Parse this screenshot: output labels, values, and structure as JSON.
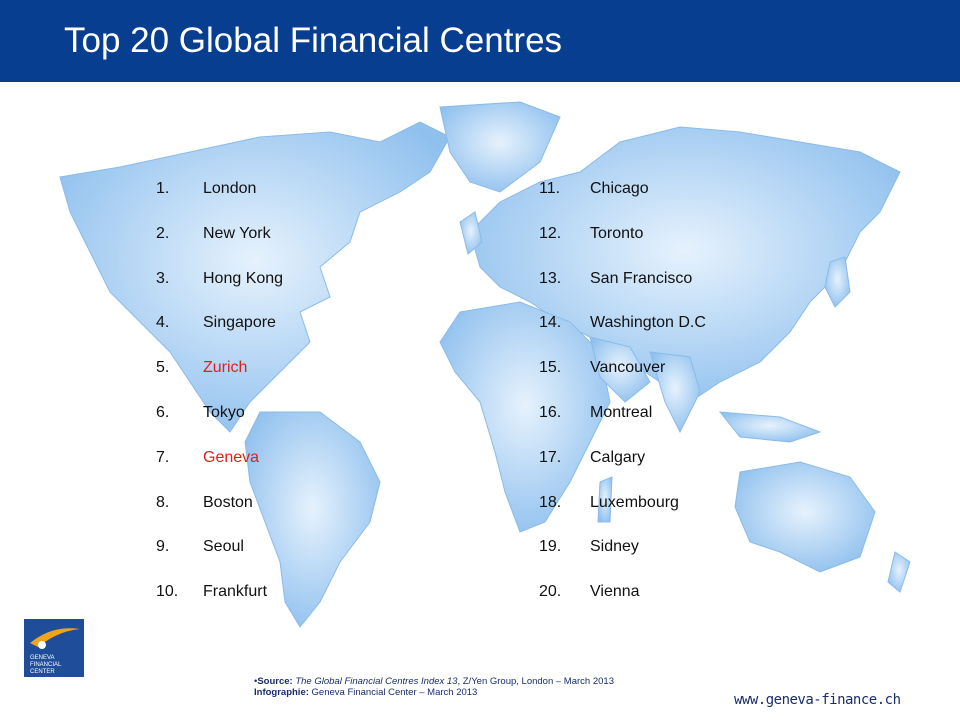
{
  "header": {
    "title": "Top 20 Global Financial Centres"
  },
  "rankings": {
    "left": [
      {
        "num": "1.",
        "name": "London"
      },
      {
        "num": "2.",
        "name": "New York"
      },
      {
        "num": "3.",
        "name": "Hong Kong"
      },
      {
        "num": "4.",
        "name": "Singapore"
      },
      {
        "num": "5.",
        "name": "Zurich",
        "highlight": true
      },
      {
        "num": "6.",
        "name": "Tokyo"
      },
      {
        "num": "7.",
        "name": "Geneva",
        "highlight": true
      },
      {
        "num": "8.",
        "name": "Boston"
      },
      {
        "num": "9.",
        "name": "Seoul"
      },
      {
        "num": "10.",
        "name": "Frankfurt"
      }
    ],
    "right": [
      {
        "num": "11.",
        "name": "Chicago"
      },
      {
        "num": "12.",
        "name": "Toronto"
      },
      {
        "num": "13.",
        "name": "San Francisco"
      },
      {
        "num": "14.",
        "name": "Washington D.C"
      },
      {
        "num": "15.",
        "name": "Vancouver"
      },
      {
        "num": "16.",
        "name": "Montreal"
      },
      {
        "num": "17.",
        "name": "Calgary"
      },
      {
        "num": "18.",
        "name": "Luxembourg"
      },
      {
        "num": "19.",
        "name": "Sidney"
      },
      {
        "num": "20.",
        "name": "Vienna"
      }
    ]
  },
  "colors": {
    "header": "#073e8f",
    "highlight": "#e0201b",
    "map": "#9cc8f2",
    "text": "#111111"
  },
  "footer": {
    "source_label": "Source:",
    "source_title": "The Global Financial Centres Index 13",
    "source_rest": ", Z/Yen Group, London – March 2013",
    "infographie_label": "Infographie:",
    "infographie_text": " Geneva Financial Center – March 2013",
    "url": "www.geneva-finance.ch"
  },
  "logo": {
    "line1": "GENEVA",
    "line2": "FINANCIAL",
    "line3": "CENTER"
  }
}
